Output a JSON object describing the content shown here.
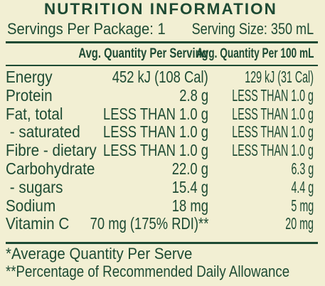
{
  "title": "NUTRITION INFORMATION",
  "servings": {
    "per_package": "Servings Per Package: 1",
    "serving_size": "Serving Size: 350 mL"
  },
  "table": {
    "header": [
      "Avg. Quantity Per Serving",
      "Avg. Quantity Per 100 mL"
    ],
    "rows": [
      [
        "Energy",
        "452 kJ (108 Cal)",
        "129 kJ (31 Cal)"
      ],
      [
        "Protein",
        "2.8 g",
        "LESS THAN 1.0 g"
      ],
      [
        "Fat, total",
        "LESS THAN 1.0 g",
        "LESS THAN 1.0 g"
      ],
      [
        " - saturated",
        "LESS THAN 1.0 g",
        "LESS THAN 1.0 g"
      ],
      [
        "Fibre - dietary",
        "LESS THAN 1.0 g",
        "LESS THAN 1.0 g"
      ],
      [
        "Carbohydrate",
        "22.0 g",
        "6.3 g"
      ],
      [
        " - sugars",
        "15.4 g",
        "4.4 g"
      ],
      [
        "Sodium",
        "18 mg",
        "5 mg"
      ],
      [
        "Vitamin C",
        "70 mg (175% RDI)**",
        "20 mg"
      ]
    ]
  },
  "footnotes": [
    "*Average Quantity Per Serve",
    "**Percentage of Recommended Daily Allowance"
  ]
}
